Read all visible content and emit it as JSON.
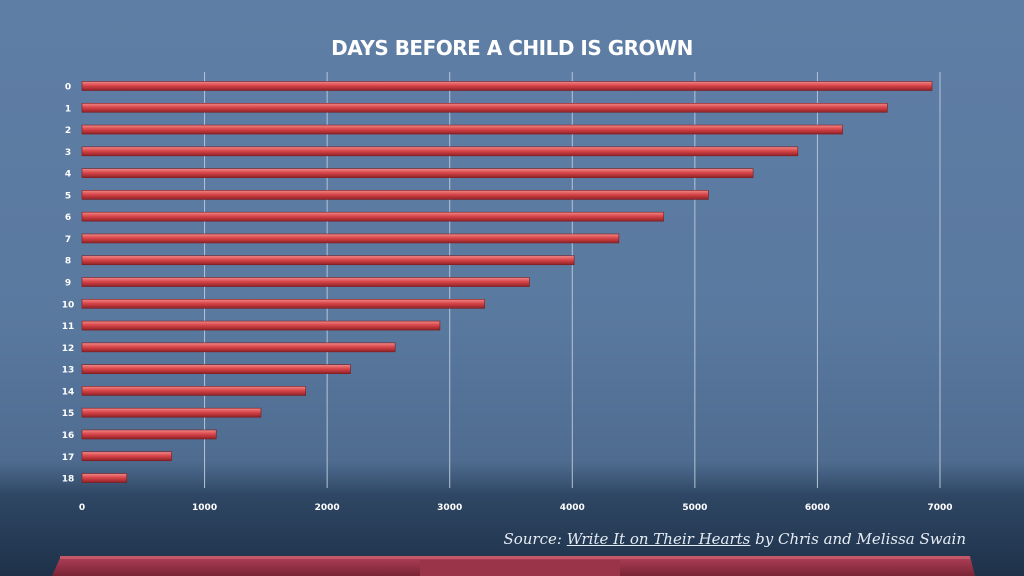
{
  "chart_data": {
    "type": "bar",
    "orientation": "horizontal",
    "title": "DAYS BEFORE A CHILD IS GROWN",
    "categories": [
      "0",
      "1",
      "2",
      "3",
      "4",
      "5",
      "6",
      "7",
      "8",
      "9",
      "10",
      "11",
      "12",
      "13",
      "14",
      "15",
      "16",
      "17",
      "18"
    ],
    "values": [
      6935,
      6570,
      6205,
      5840,
      5475,
      5110,
      4745,
      4380,
      4015,
      3650,
      3285,
      2920,
      2555,
      2190,
      1825,
      1460,
      1095,
      730,
      365
    ],
    "xticks": [
      0,
      1000,
      2000,
      3000,
      4000,
      5000,
      6000,
      7000
    ],
    "xlim": [
      0,
      7000
    ],
    "grid": "vertical",
    "bar_color": "#d9464a",
    "xlabel": "",
    "ylabel": ""
  },
  "source": {
    "prefix": "Source:",
    "book": "Write It on Their Hearts",
    "suffix": "by Chris and Melissa Swain"
  },
  "colors": {
    "grid": "#b4c4d8",
    "bar": "#d9464a",
    "bar_highlight": "#f08a88",
    "bar_shadow": "#8f2226",
    "dock": "#a8384a"
  }
}
